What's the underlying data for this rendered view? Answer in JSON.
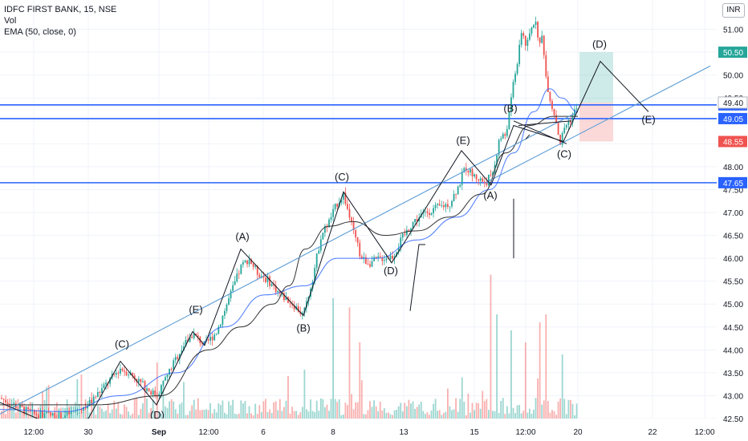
{
  "legend": {
    "symbol": "IDFC FIRST BANK, 15, NSE",
    "vol": "Vol",
    "ema": "EMA (50, close, 0)"
  },
  "currency": "INR",
  "colors": {
    "up": "#26a69a",
    "down": "#ef5350",
    "ema": "#2962ff",
    "hline": "#2962ff",
    "trend": "#5b9bd5",
    "ink": "#131722",
    "target": "#26a69a",
    "stop": "#ef5350"
  },
  "chart_data": {
    "type": "candlestick",
    "ylim": [
      42.5,
      51.5
    ],
    "xlim": [
      0,
      930
    ],
    "y_ticks": [
      "42.50",
      "43.00",
      "43.50",
      "44.00",
      "44.50",
      "45.00",
      "45.50",
      "46.00",
      "46.50",
      "47.00",
      "47.50",
      "48.00",
      "48.50",
      "49.00",
      "49.50",
      "50.00",
      "50.50",
      "51.00"
    ],
    "x_ticks": [
      {
        "x": 42,
        "label": "12:00"
      },
      {
        "x": 110,
        "label": "30"
      },
      {
        "x": 198,
        "label": "Sep"
      },
      {
        "x": 260,
        "label": "12:00"
      },
      {
        "x": 328,
        "label": "6"
      },
      {
        "x": 415,
        "label": "8"
      },
      {
        "x": 503,
        "label": "13"
      },
      {
        "x": 591,
        "label": "15"
      },
      {
        "x": 655,
        "label": "12:00"
      },
      {
        "x": 720,
        "label": "20"
      },
      {
        "x": 813,
        "label": "22"
      },
      {
        "x": 878,
        "label": "12:00"
      }
    ],
    "horizontal_levels": [
      {
        "value": 49.35,
        "label": "49.35"
      },
      {
        "value": 49.05,
        "label": "49.05"
      },
      {
        "value": 47.65,
        "label": "47.65"
      }
    ],
    "price_tags": [
      {
        "value": 50.5,
        "label": "50.50",
        "kind": "target"
      },
      {
        "value": 49.4,
        "label": "49.40",
        "kind": "last"
      },
      {
        "value": 48.55,
        "label": "48.55",
        "kind": "stop"
      }
    ],
    "position": {
      "x_start": 722,
      "x_end": 764,
      "entry": 49.4,
      "target": 50.5,
      "stop": 48.55
    },
    "close_path": [
      [
        0,
        42.95
      ],
      [
        40,
        42.6
      ],
      [
        80,
        42.55
      ],
      [
        110,
        42.8
      ],
      [
        130,
        43.2
      ],
      [
        150,
        43.6
      ],
      [
        165,
        43.45
      ],
      [
        180,
        43.2
      ],
      [
        195,
        43.0
      ],
      [
        210,
        43.5
      ],
      [
        225,
        44.0
      ],
      [
        240,
        44.35
      ],
      [
        255,
        44.1
      ],
      [
        270,
        44.4
      ],
      [
        285,
        45.1
      ],
      [
        300,
        45.8
      ],
      [
        310,
        46.0
      ],
      [
        320,
        45.7
      ],
      [
        335,
        45.5
      ],
      [
        350,
        45.2
      ],
      [
        365,
        45.0
      ],
      [
        378,
        44.75
      ],
      [
        390,
        45.6
      ],
      [
        400,
        46.5
      ],
      [
        410,
        46.8
      ],
      [
        420,
        47.2
      ],
      [
        428,
        47.4
      ],
      [
        440,
        46.6
      ],
      [
        450,
        46.0
      ],
      [
        460,
        45.9
      ],
      [
        475,
        46.0
      ],
      [
        490,
        46.05
      ],
      [
        500,
        46.4
      ],
      [
        515,
        46.8
      ],
      [
        530,
        47.0
      ],
      [
        545,
        47.1
      ],
      [
        560,
        47.2
      ],
      [
        572,
        47.6
      ],
      [
        580,
        48.0
      ],
      [
        590,
        47.8
      ],
      [
        605,
        47.65
      ],
      [
        615,
        47.9
      ],
      [
        622,
        48.6
      ],
      [
        630,
        48.7
      ],
      [
        636,
        49.3
      ],
      [
        640,
        49.9
      ],
      [
        646,
        50.4
      ],
      [
        650,
        51.0
      ],
      [
        656,
        50.6
      ],
      [
        662,
        51.0
      ],
      [
        668,
        51.25
      ],
      [
        672,
        50.6
      ],
      [
        676,
        50.9
      ],
      [
        680,
        50.0
      ],
      [
        684,
        49.6
      ],
      [
        688,
        49.3
      ],
      [
        692,
        49.1
      ],
      [
        698,
        48.5
      ],
      [
        704,
        48.9
      ],
      [
        710,
        49.0
      ],
      [
        716,
        49.2
      ],
      [
        720,
        49.4
      ]
    ],
    "ema_path": [
      [
        0,
        42.7
      ],
      [
        80,
        42.65
      ],
      [
        150,
        43.0
      ],
      [
        220,
        43.5
      ],
      [
        280,
        44.5
      ],
      [
        330,
        45.2
      ],
      [
        380,
        45.4
      ],
      [
        420,
        46.0
      ],
      [
        470,
        46.0
      ],
      [
        520,
        46.4
      ],
      [
        570,
        46.9
      ],
      [
        610,
        47.5
      ],
      [
        640,
        48.3
      ],
      [
        665,
        49.2
      ],
      [
        685,
        49.7
      ],
      [
        700,
        49.5
      ],
      [
        720,
        49.2
      ]
    ],
    "ma2_path": [
      [
        0,
        42.8
      ],
      [
        120,
        42.8
      ],
      [
        200,
        43.0
      ],
      [
        260,
        44.0
      ],
      [
        300,
        44.5
      ],
      [
        340,
        45.0
      ],
      [
        360,
        45.4
      ],
      [
        380,
        46.2
      ],
      [
        410,
        46.7
      ],
      [
        440,
        46.8
      ],
      [
        480,
        46.5
      ],
      [
        520,
        46.6
      ],
      [
        560,
        46.9
      ],
      [
        600,
        47.4
      ],
      [
        630,
        48.3
      ],
      [
        660,
        48.9
      ],
      [
        690,
        49.1
      ],
      [
        720,
        49.1
      ]
    ],
    "trendlines": [
      {
        "points": [
          [
            605,
            47.65
          ],
          [
            885,
            50.2
          ]
        ],
        "color": "trend"
      },
      {
        "points": [
          [
            0,
            42.6
          ],
          [
            720,
            49.2
          ]
        ],
        "color": "trend"
      }
    ],
    "wave_lines": [
      [
        [
          0,
          42.85
        ],
        [
          60,
          42.4
        ],
        [
          110,
          42.5
        ],
        [
          150,
          43.75
        ],
        [
          195,
          42.8
        ],
        [
          240,
          44.4
        ],
        [
          255,
          44.1
        ],
        [
          300,
          46.2
        ],
        [
          378,
          44.75
        ],
        [
          428,
          47.45
        ],
        [
          488,
          45.9
        ],
        [
          575,
          48.35
        ],
        [
          612,
          47.6
        ],
        [
          640,
          48.9
        ],
        [
          702,
          48.55
        ],
        [
          748,
          50.3
        ],
        [
          808,
          49.2
        ]
      ]
    ],
    "extra_lines": [
      [
        [
          511,
          44.85
        ],
        [
          522,
          46.3
        ],
        [
          530,
          46.3
        ]
      ],
      [
        [
          640,
          47.3
        ],
        [
          640,
          46.0
        ]
      ],
      [
        [
          660,
          48.7
        ],
        [
          655,
          48.6
        ]
      ],
      [
        [
          646,
          48.9
        ],
        [
          712,
          49.0
        ]
      ],
      [
        [
          640,
          49.0
        ],
        [
          706,
          48.5
        ]
      ]
    ],
    "wave_labels": [
      {
        "x": 152,
        "y": 44.05,
        "label": "(C)"
      },
      {
        "x": 244,
        "y": 44.8,
        "label": "(E)"
      },
      {
        "x": 302,
        "y": 46.4,
        "label": "(A)"
      },
      {
        "x": 378,
        "y": 44.4,
        "label": "(B)"
      },
      {
        "x": 426,
        "y": 47.7,
        "label": "(C)"
      },
      {
        "x": 487,
        "y": 45.65,
        "label": "(D)"
      },
      {
        "x": 577,
        "y": 48.5,
        "label": "(E)"
      },
      {
        "x": 611,
        "y": 47.3,
        "label": "(A)"
      },
      {
        "x": 636,
        "y": 49.2,
        "label": "(B)"
      },
      {
        "x": 703,
        "y": 48.2,
        "label": "(C)"
      },
      {
        "x": 747,
        "y": 50.6,
        "label": "(D)"
      },
      {
        "x": 808,
        "y": 48.95,
        "label": "(E)"
      },
      {
        "x": 196,
        "y": 42.5,
        "label": "(D)"
      }
    ],
    "volume_spikes": [
      {
        "x": 415,
        "h": 150
      },
      {
        "x": 435,
        "h": 118
      },
      {
        "x": 448,
        "h": 95
      },
      {
        "x": 196,
        "h": 70
      },
      {
        "x": 612,
        "h": 150
      },
      {
        "x": 620,
        "h": 130
      },
      {
        "x": 638,
        "h": 110
      },
      {
        "x": 655,
        "h": 95
      },
      {
        "x": 672,
        "h": 120
      },
      {
        "x": 680,
        "h": 130
      },
      {
        "x": 700,
        "h": 80
      }
    ]
  }
}
